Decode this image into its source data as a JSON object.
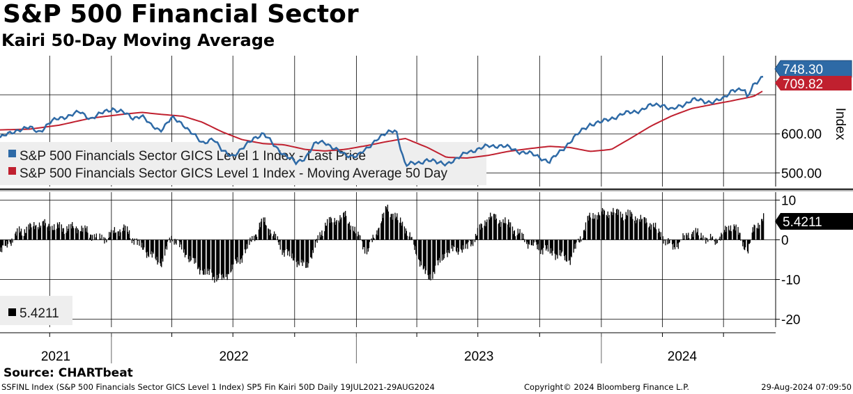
{
  "title": "S&P 500 Financial Sector",
  "subtitle": "Kairi 50-Day Moving Average",
  "source": "Source: CHARTbeat",
  "footer": {
    "left": "SSFINL Index (S&P 500 Financials Sector GICS Level 1 Index) SP5 Fin Kairi 50D  Daily 19JUL2021-29AUG2024",
    "middle": "Copyright© 2024 Bloomberg Finance L.P.",
    "right": "29-Aug-2024 07:09:50"
  },
  "colors": {
    "price": "#2e6aa6",
    "ma": "#c0202f",
    "kairi": "#000000",
    "grid": "#000000",
    "legend_bg": "#eeeeee"
  },
  "chart_data": [
    {
      "type": "line",
      "panel": "price",
      "yaxis_label": "Index",
      "yticks": [
        500,
        600
      ],
      "ytick_labels": [
        "500.00",
        "600.00"
      ],
      "ylim": [
        465,
        800
      ],
      "x_year_labels": [
        "2021",
        "2022",
        "2023",
        "2024"
      ],
      "legend": [
        "S&P 500 Financials Sector GICS Level 1 Index - Last Price",
        "S&P 500 Financials Sector GICS Level 1 Index - Moving Average 50 Day"
      ],
      "last_value_labels": {
        "price": "748.30",
        "ma": "709.82"
      },
      "series": [
        {
          "name": "S&P 500 Financials Sector GICS Level 1 Index - Last Price",
          "dates": [
            "2021-07-19",
            "2021-08-02",
            "2021-08-16",
            "2021-09-01",
            "2021-09-15",
            "2021-10-01",
            "2021-10-15",
            "2021-11-01",
            "2021-11-15",
            "2021-12-01",
            "2021-12-15",
            "2022-01-03",
            "2022-01-18",
            "2022-02-01",
            "2022-02-15",
            "2022-03-01",
            "2022-03-15",
            "2022-04-01",
            "2022-04-18",
            "2022-05-02",
            "2022-05-16",
            "2022-06-01",
            "2022-06-15",
            "2022-07-01",
            "2022-07-15",
            "2022-08-01",
            "2022-08-15",
            "2022-09-01",
            "2022-09-15",
            "2022-10-03",
            "2022-10-17",
            "2022-11-01",
            "2022-11-15",
            "2022-12-01",
            "2022-12-15",
            "2023-01-03",
            "2023-01-17",
            "2023-02-01",
            "2023-02-15",
            "2023-03-01",
            "2023-03-15",
            "2023-04-03",
            "2023-04-17",
            "2023-05-01",
            "2023-05-15",
            "2023-06-01",
            "2023-06-15",
            "2023-07-03",
            "2023-07-17",
            "2023-08-01",
            "2023-08-15",
            "2023-09-01",
            "2023-09-15",
            "2023-10-02",
            "2023-10-16",
            "2023-11-01",
            "2023-11-15",
            "2023-12-01",
            "2023-12-15",
            "2024-01-02",
            "2024-01-16",
            "2024-02-01",
            "2024-02-15",
            "2024-03-01",
            "2024-03-15",
            "2024-04-01",
            "2024-04-15",
            "2024-05-01",
            "2024-05-15",
            "2024-06-03",
            "2024-06-17",
            "2024-07-01",
            "2024-07-15",
            "2024-08-01",
            "2024-08-05",
            "2024-08-15",
            "2024-08-29"
          ],
          "values": [
            590,
            600,
            612,
            615,
            605,
            628,
            640,
            648,
            655,
            640,
            650,
            665,
            655,
            640,
            648,
            620,
            610,
            640,
            625,
            600,
            575,
            590,
            555,
            545,
            560,
            590,
            600,
            570,
            548,
            525,
            540,
            575,
            580,
            560,
            545,
            545,
            560,
            590,
            600,
            610,
            520,
            525,
            535,
            525,
            525,
            535,
            555,
            560,
            570,
            570,
            565,
            555,
            550,
            540,
            528,
            555,
            580,
            605,
            625,
            630,
            640,
            650,
            655,
            662,
            672,
            676,
            660,
            674,
            688,
            682,
            684,
            688,
            715,
            712,
            690,
            728,
            748
          ]
        },
        {
          "name": "S&P 500 Financials Sector GICS Level 1 Index - Moving Average 50 Day",
          "dates": [
            "2021-07-19",
            "2021-09-01",
            "2021-10-15",
            "2021-12-01",
            "2022-01-18",
            "2022-02-15",
            "2022-03-15",
            "2022-04-18",
            "2022-05-16",
            "2022-06-15",
            "2022-07-15",
            "2022-08-15",
            "2022-09-15",
            "2022-10-17",
            "2022-11-15",
            "2022-12-15",
            "2023-01-17",
            "2023-02-15",
            "2023-03-15",
            "2023-04-17",
            "2023-05-15",
            "2023-06-15",
            "2023-07-17",
            "2023-08-15",
            "2023-09-15",
            "2023-10-16",
            "2023-11-15",
            "2023-12-15",
            "2024-01-16",
            "2024-02-15",
            "2024-03-15",
            "2024-04-15",
            "2024-05-15",
            "2024-06-17",
            "2024-07-15",
            "2024-08-15",
            "2024-08-29"
          ],
          "values": [
            610,
            612,
            622,
            640,
            650,
            655,
            650,
            645,
            630,
            605,
            585,
            575,
            572,
            560,
            556,
            560,
            570,
            580,
            588,
            565,
            540,
            538,
            545,
            555,
            562,
            568,
            565,
            555,
            560,
            590,
            620,
            646,
            665,
            676,
            685,
            696,
            710
          ]
        }
      ]
    },
    {
      "type": "bar",
      "panel": "kairi",
      "name": "5.4211",
      "yticks": [
        10,
        0,
        -10,
        -20
      ],
      "ytick_labels": [
        "10",
        "0",
        "-10",
        "-20"
      ],
      "ylim": [
        -22,
        12
      ],
      "last_value_label": "5.4211",
      "dates": [
        "2021-07-19",
        "2021-08-16",
        "2021-09-15",
        "2021-10-15",
        "2021-11-15",
        "2021-12-15",
        "2022-01-18",
        "2022-02-15",
        "2022-03-15",
        "2022-04-01",
        "2022-04-18",
        "2022-05-16",
        "2022-06-15",
        "2022-07-15",
        "2022-08-15",
        "2022-09-15",
        "2022-10-17",
        "2022-11-15",
        "2022-12-15",
        "2023-01-17",
        "2023-02-15",
        "2023-03-15",
        "2023-04-17",
        "2023-05-15",
        "2023-06-15",
        "2023-07-17",
        "2023-08-15",
        "2023-09-15",
        "2023-10-16",
        "2023-11-15",
        "2023-12-15",
        "2024-01-16",
        "2024-02-15",
        "2024-03-15",
        "2024-04-15",
        "2024-05-15",
        "2024-06-17",
        "2024-07-15",
        "2024-08-05",
        "2024-08-15",
        "2024-08-29"
      ],
      "values": [
        -3,
        2,
        4,
        3,
        3,
        0,
        3,
        -2,
        -6,
        1,
        -3,
        -8,
        -10,
        -4,
        5,
        -3,
        -7,
        4,
        6,
        -3,
        8,
        3,
        -10,
        -3,
        -2,
        6,
        4,
        -1,
        -3,
        -5,
        6,
        7,
        6,
        4,
        -2,
        2,
        -0.5,
        4,
        -3,
        3,
        5.4211
      ]
    }
  ]
}
